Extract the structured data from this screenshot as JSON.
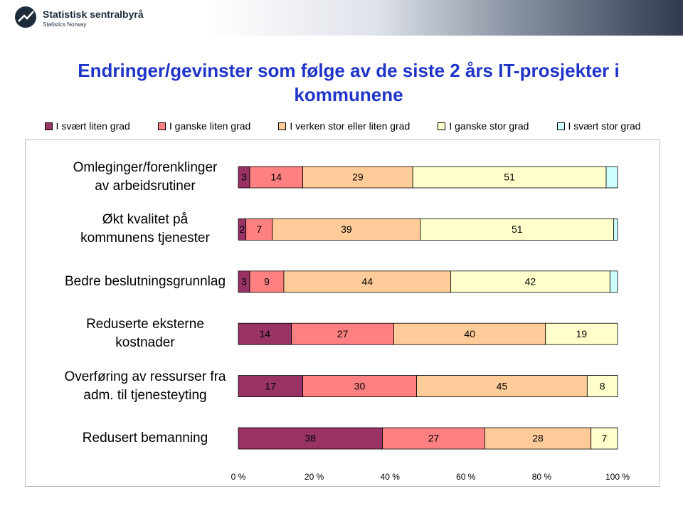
{
  "header": {
    "logo": "Statistisk sentralbyrå",
    "logo_subtitle": "Statistics Norway"
  },
  "chart_data": {
    "type": "stacked-bar-horizontal-percent",
    "title": "Endringer/gevinster som følge av de siste 2 års IT-prosjekter i kommunene",
    "categories": [
      "Omleginger/forenklinger av arbeidsrutiner",
      "Økt kvalitet på kommunens tjenester",
      "Bedre beslutningsgrunnlag",
      "Reduserte eksterne kostnader",
      "Overføring av ressurser fra adm. til tjenesteyting",
      "Redusert bemanning"
    ],
    "series": [
      {
        "name": "I svært liten grad",
        "color": "#993366",
        "values": [
          3,
          2,
          3,
          14,
          17,
          38
        ]
      },
      {
        "name": "I ganske liten grad",
        "color": "#ff8080",
        "values": [
          14,
          7,
          9,
          27,
          30,
          27
        ]
      },
      {
        "name": "I verken stor eller liten grad",
        "color": "#ffcc99",
        "values": [
          29,
          39,
          44,
          40,
          45,
          28
        ]
      },
      {
        "name": "I ganske stor grad",
        "color": "#ffffcc",
        "values": [
          51,
          51,
          42,
          19,
          8,
          7
        ]
      },
      {
        "name": "I svært stor grad",
        "color": "#ccffff",
        "values": [
          3,
          1,
          2,
          0,
          0,
          0
        ],
        "show_labels": false
      }
    ],
    "xlim": [
      0,
      100
    ],
    "xticks": [
      {
        "value": 0,
        "label": "0 %"
      },
      {
        "value": 20,
        "label": "20 %"
      },
      {
        "value": 40,
        "label": "40 %"
      },
      {
        "value": 60,
        "label": "60 %"
      },
      {
        "value": 80,
        "label": "80 %"
      },
      {
        "value": 100,
        "label": "100 %"
      }
    ],
    "legend": "top"
  }
}
